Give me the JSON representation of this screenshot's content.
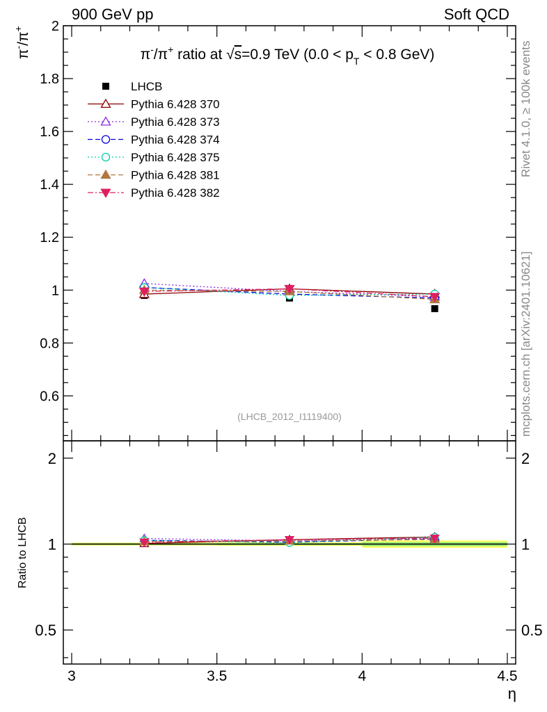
{
  "header": {
    "left": "900 GeV pp",
    "right": "Soft QCD"
  },
  "side_notes": {
    "rivet": "Rivet 4.1.0, ≥ 100k events",
    "mcplots": "mcplots.cern.ch [arXiv:2401.10621]"
  },
  "watermark": "(LHCB_2012_I1119400)",
  "chart_data": {
    "type": "scatter",
    "title": "π⁻/π⁺ ratio at √s=0.9 TeV (0.0 < pT < 0.8 GeV)",
    "title_parts": {
      "prefix": "π",
      "sup1": "-",
      "mid": "/π",
      "sup2": "+",
      "rest1": " ratio at ",
      "sqrt": "√",
      "s": "s",
      "rest2": "=0.9 TeV (0.0 < p",
      "sub": "T",
      "rest3": " < 0.8 GeV)"
    },
    "ylabel": {
      "base1": "π",
      "sup1": "-",
      "base2": "/π",
      "sup2": "+"
    },
    "xlabel": "η",
    "xlim": [
      3,
      4.5
    ],
    "ylim": [
      0.43,
      2
    ],
    "x_ticks": [
      3,
      3.5,
      4,
      4.5
    ],
    "x_tick_labels": [
      "3",
      "3.5",
      "4",
      "4.5"
    ],
    "y_ticks": [
      0.6,
      0.8,
      1,
      1.2,
      1.4,
      1.6,
      1.8,
      2
    ],
    "y_tick_labels": [
      "0.6",
      "0.8",
      "1",
      "1.2",
      "1.4",
      "1.6",
      "1.8",
      "2"
    ],
    "x": [
      3.25,
      3.75,
      4.25
    ],
    "x_edges": [
      3.0,
      3.5,
      4.0,
      4.5
    ],
    "series": [
      {
        "name": "LHCB",
        "values": [
          0.98,
          0.97,
          0.93
        ],
        "color": "#000000",
        "marker": "square",
        "filled": true,
        "line": "none"
      },
      {
        "name": "Pythia 6.428 370",
        "values": [
          0.985,
          1.005,
          0.985
        ],
        "color": "#8b0000",
        "marker": "triangle-up",
        "filled": false,
        "line": "solid"
      },
      {
        "name": "Pythia 6.428 373",
        "values": [
          1.025,
          0.995,
          0.975
        ],
        "color": "#8a2be2",
        "marker": "triangle-up",
        "filled": false,
        "line": "dotted"
      },
      {
        "name": "Pythia 6.428 374",
        "values": [
          1.01,
          0.985,
          0.97
        ],
        "color": "#0000dd",
        "marker": "circle",
        "filled": false,
        "line": "dashed"
      },
      {
        "name": "Pythia 6.428 375",
        "values": [
          1.01,
          0.98,
          0.985
        ],
        "color": "#00ccaa",
        "marker": "circle",
        "filled": false,
        "line": "dotted"
      },
      {
        "name": "Pythia 6.428 381",
        "values": [
          1.0,
          0.995,
          0.965
        ],
        "color": "#b07840",
        "marker": "triangle-up",
        "filled": true,
        "line": "dashed"
      },
      {
        "name": "Pythia 6.428 382",
        "values": [
          0.995,
          1.005,
          0.975
        ],
        "color": "#dd2060",
        "marker": "triangle-down",
        "filled": true,
        "line": "dashdot"
      }
    ],
    "ratio_panel": {
      "ylabel": "Ratio to LHCB",
      "ylim": [
        0.38,
        2.3
      ],
      "y_ticks": [
        0.5,
        1,
        2
      ],
      "y_tick_labels": [
        "0.5",
        "1",
        "2"
      ],
      "band_half_widths": [
        0.012,
        0.015,
        0.03
      ],
      "band_colors": {
        "outer": "#ffff66",
        "inner": "#99ee77"
      }
    }
  }
}
